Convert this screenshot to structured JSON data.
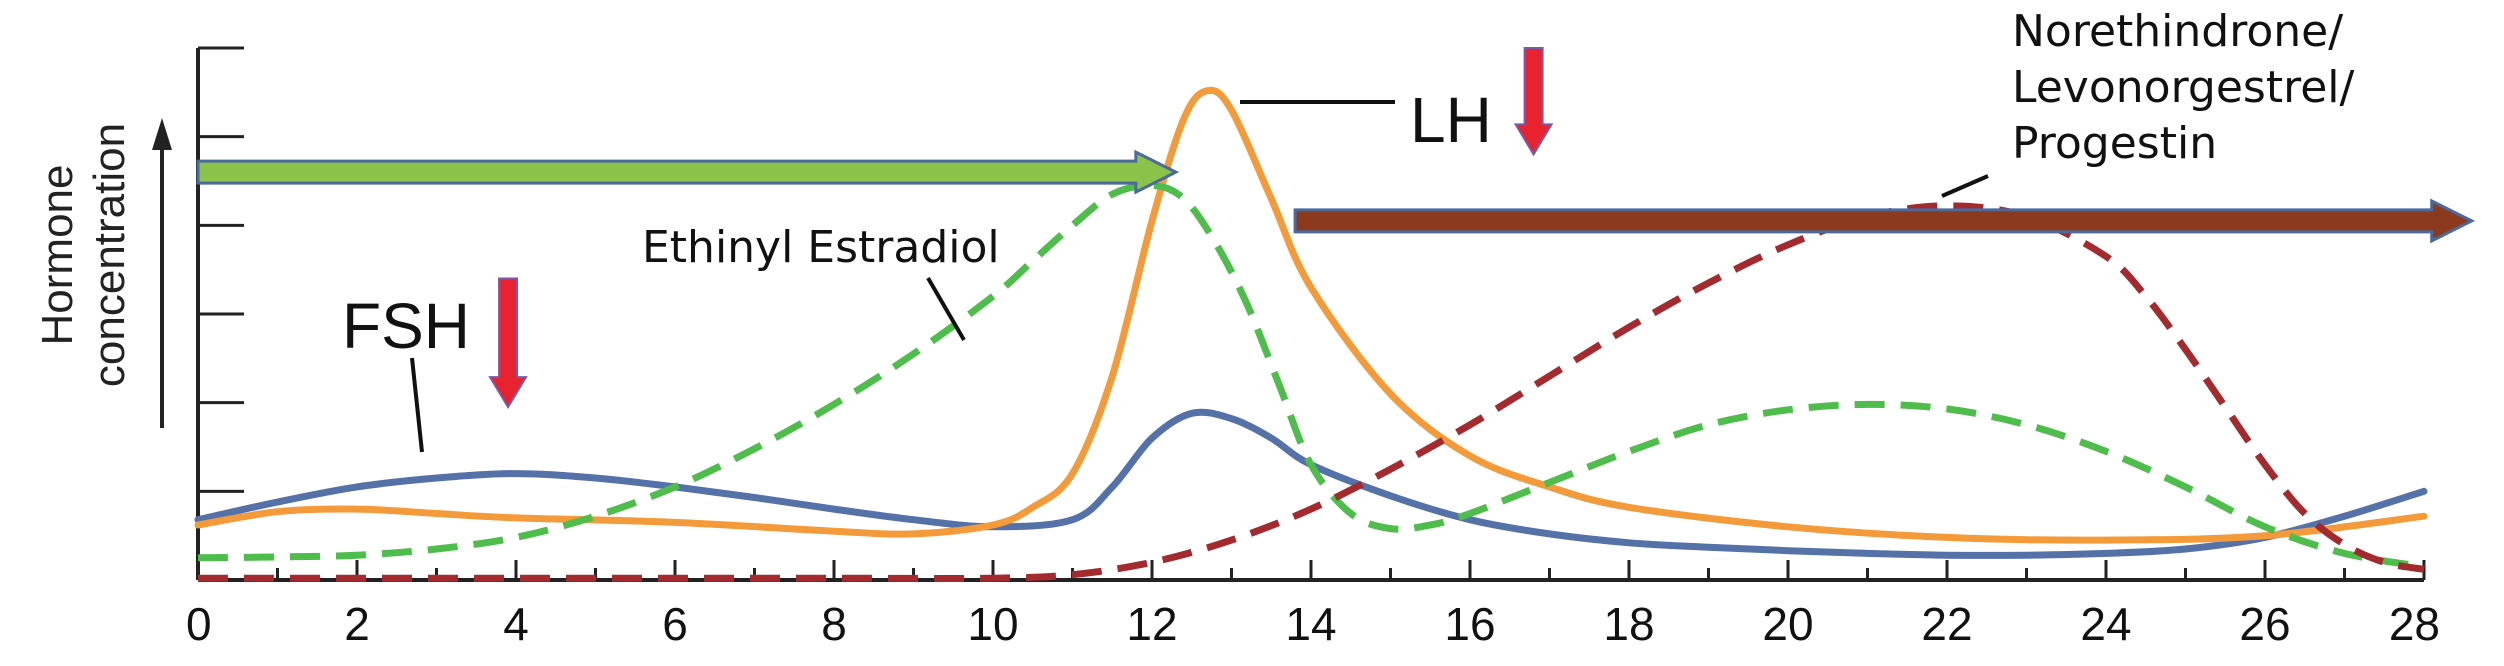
{
  "chart_data": {
    "type": "line",
    "title": "",
    "xlabel": "",
    "ylabel": "Hormone concentration",
    "ylabel_lines": [
      "Hormone",
      "concentration"
    ],
    "xlim": [
      0,
      28
    ],
    "x_ticks": [
      0,
      2,
      4,
      6,
      8,
      10,
      12,
      14,
      16,
      18,
      20,
      22,
      24,
      26,
      28
    ],
    "ylim": [
      0,
      6
    ],
    "grid": false,
    "legend": "none",
    "series": [
      {
        "name": "FSH",
        "color": "#5572a8",
        "dash": "solid",
        "x": [
          0,
          1,
          2,
          3,
          4,
          5,
          6,
          7,
          8,
          9,
          10,
          11,
          11.5,
          12,
          12.5,
          13,
          13.5,
          14,
          15,
          16,
          17,
          18,
          19,
          20,
          21,
          22,
          23,
          24,
          25,
          26,
          27,
          28
        ],
        "y": [
          0.68,
          0.88,
          1.05,
          1.15,
          1.2,
          1.15,
          1.05,
          0.93,
          0.8,
          0.68,
          0.6,
          0.68,
          1.05,
          1.6,
          1.88,
          1.82,
          1.6,
          1.3,
          0.95,
          0.68,
          0.52,
          0.42,
          0.37,
          0.33,
          0.3,
          0.28,
          0.28,
          0.3,
          0.35,
          0.48,
          0.72,
          1.0
        ]
      },
      {
        "name": "LH",
        "color": "#f39a3a",
        "dash": "solid",
        "x": [
          0,
          1,
          2,
          3,
          4,
          6,
          8,
          9,
          10,
          10.5,
          11,
          11.5,
          12,
          12.4,
          12.7,
          13,
          13.5,
          14,
          15,
          16,
          17,
          18,
          20,
          22,
          24,
          26,
          28
        ],
        "y": [
          0.62,
          0.77,
          0.8,
          0.75,
          0.7,
          0.65,
          0.55,
          0.52,
          0.62,
          0.82,
          1.2,
          2.3,
          4.05,
          5.2,
          5.52,
          5.3,
          4.3,
          3.3,
          2.1,
          1.4,
          1.05,
          0.82,
          0.6,
          0.48,
          0.45,
          0.5,
          0.72
        ]
      },
      {
        "name": "Ethinyl Estradiol",
        "color": "#4fbd4c",
        "dash": "dashed",
        "x": [
          0,
          1,
          2,
          3,
          4,
          5,
          6,
          7,
          8,
          9,
          10,
          10.5,
          11,
          11.5,
          12,
          12.4,
          12.8,
          13.2,
          13.6,
          14,
          14.5,
          15,
          15.5,
          16,
          17,
          18,
          19,
          20,
          21,
          22,
          23,
          24,
          25,
          26,
          27,
          28
        ],
        "y": [
          0.25,
          0.26,
          0.28,
          0.35,
          0.48,
          0.72,
          1.05,
          1.48,
          1.98,
          2.55,
          3.2,
          3.6,
          4.0,
          4.35,
          4.45,
          4.3,
          3.8,
          3.1,
          2.2,
          1.3,
          0.75,
          0.58,
          0.62,
          0.75,
          1.1,
          1.45,
          1.75,
          1.92,
          1.98,
          1.93,
          1.75,
          1.45,
          1.05,
          0.6,
          0.3,
          0.15
        ]
      },
      {
        "name": "Norethindrone/Levonorgestrel/Progestin",
        "color": "#a32b30",
        "dash": "dashed",
        "x": [
          0,
          2,
          4,
          6,
          8,
          10,
          11,
          12,
          13,
          14,
          15,
          16,
          17,
          18,
          19,
          20,
          21,
          22,
          23,
          24,
          24.5,
          25,
          25.5,
          26,
          26.5,
          27,
          27.5,
          28
        ],
        "y": [
          0.02,
          0.02,
          0.02,
          0.02,
          0.02,
          0.02,
          0.06,
          0.2,
          0.45,
          0.8,
          1.25,
          1.75,
          2.3,
          2.85,
          3.35,
          3.78,
          4.1,
          4.22,
          4.1,
          3.65,
          3.2,
          2.6,
          1.95,
          1.3,
          0.75,
          0.4,
          0.2,
          0.12
        ]
      }
    ],
    "annotations": {
      "fsh_label": "FSH",
      "lh_label": "LH",
      "estradiol_label": "Ethinyl Estradiol",
      "progestin_label_lines": [
        "Norethindrone/",
        "Levonorgestrel/",
        "Progestin"
      ]
    },
    "range_arrows": [
      {
        "name": "estrogen-range-arrow",
        "from": 0,
        "to": 12.3,
        "level": 4.6,
        "color": "#8bc34a"
      },
      {
        "name": "progestin-range-arrow",
        "from": 13.8,
        "to": 28.6,
        "level": 4.05,
        "color": "#8b3a1e"
      }
    ],
    "marker_arrows": [
      {
        "name": "fsh-marker-arrow",
        "x": 3.9,
        "from_level": 3.4,
        "to_level": 1.95,
        "color": "#e8232f"
      },
      {
        "name": "lh-marker-arrow",
        "x": 16.8,
        "from_level": 6.0,
        "to_level": 4.8,
        "color": "#e8232f"
      }
    ]
  }
}
